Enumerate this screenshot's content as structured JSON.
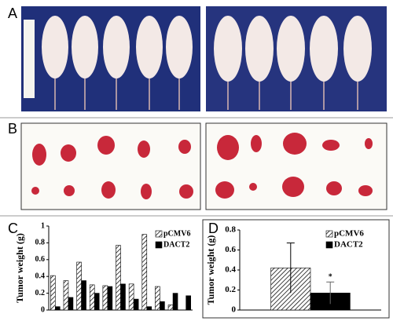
{
  "panels": {
    "a": "A",
    "b": "B",
    "c": "C",
    "d": "D"
  },
  "chart_data": [
    {
      "type": "bar",
      "ylabel": "Tumor weight (g)",
      "categories": [
        null,
        null,
        null,
        null,
        null,
        null,
        null,
        null,
        null,
        null,
        null
      ],
      "series": [
        {
          "name": "pCMV6",
          "color": "#ffffff",
          "hatch": true,
          "values": [
            0.41,
            0.35,
            0.57,
            0.3,
            0.29,
            0.77,
            0.31,
            0.9,
            0.28,
            0.06,
            null
          ]
        },
        {
          "name": "DACT2",
          "color": "#000000",
          "hatch": false,
          "values": [
            0.04,
            0.15,
            0.35,
            0.2,
            0.28,
            0.31,
            0.13,
            0.04,
            0.1,
            0.2,
            0.17
          ]
        }
      ],
      "ylim": [
        0,
        1
      ],
      "yticks": [
        0,
        0.2,
        0.4,
        0.6,
        0.8,
        1
      ]
    },
    {
      "type": "bar",
      "ylabel": "Tumor weight (g)",
      "annotation": "*",
      "categories": [
        null
      ],
      "series": [
        {
          "name": "pCMV6",
          "color": "#ffffff",
          "hatch": true,
          "values": [
            0.42
          ],
          "errors": [
            0.25
          ]
        },
        {
          "name": "DACT2",
          "color": "#000000",
          "hatch": false,
          "values": [
            0.17
          ],
          "errors": [
            0.11
          ]
        }
      ],
      "ylim": [
        0,
        0.8
      ],
      "yticks": [
        0,
        0.2,
        0.4,
        0.6,
        0.8
      ]
    }
  ]
}
